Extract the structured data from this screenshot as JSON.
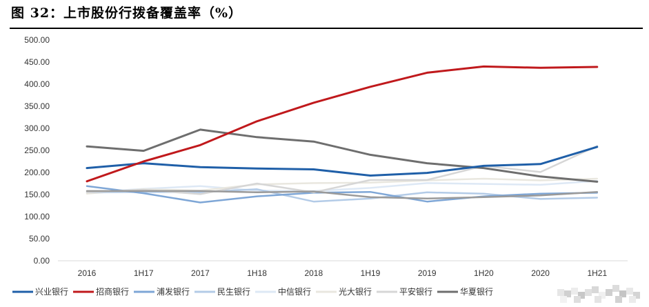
{
  "figure": {
    "title": "图 32：上市股份行拨备覆盖率（%）"
  },
  "chart_data": {
    "type": "line",
    "categories": [
      "2016",
      "1H17",
      "2017",
      "1H18",
      "2018",
      "1H19",
      "2019",
      "1H20",
      "2020",
      "1H21"
    ],
    "y_ticks": [
      "0.00",
      "50.00",
      "100.00",
      "150.00",
      "200.00",
      "250.00",
      "300.00",
      "350.00",
      "400.00",
      "450.00",
      "500.00"
    ],
    "ylim": [
      0,
      500
    ],
    "grid": false,
    "legend_position": "bottom",
    "series": [
      {
        "name": "兴业银行",
        "color": "#1f5fa8",
        "width": 3,
        "values": [
          210,
          221,
          212,
          209,
          207,
          193,
          199,
          215,
          219,
          258
        ]
      },
      {
        "name": "招商银行",
        "color": "#c0191c",
        "width": 3,
        "values": [
          180,
          225,
          262,
          316,
          358,
          394,
          426,
          440,
          437,
          439
        ]
      },
      {
        "name": "浦发银行",
        "color": "#7ea6d6",
        "width": 2.5,
        "values": [
          169,
          153,
          132,
          146,
          154,
          156,
          134,
          146,
          152,
          154
        ]
      },
      {
        "name": "民生银行",
        "color": "#b3cbe7",
        "width": 2.5,
        "values": [
          155,
          156,
          155,
          162,
          134,
          141,
          155,
          152,
          140,
          143
        ]
      },
      {
        "name": "中信银行",
        "color": "#dde8f5",
        "width": 2.5,
        "values": [
          155,
          163,
          169,
          159,
          158,
          165,
          176,
          174,
          172,
          181
        ]
      },
      {
        "name": "光大银行",
        "color": "#e9e7df",
        "width": 2.5,
        "values": [
          152,
          162,
          159,
          173,
          176,
          177,
          182,
          186,
          182,
          186
        ]
      },
      {
        "name": "平安银行",
        "color": "#d6d6d6",
        "width": 2.5,
        "values": [
          155,
          161,
          151,
          175,
          155,
          183,
          183,
          215,
          201,
          260
        ]
      },
      {
        "name": "华夏银行",
        "color": "#6e6e6e",
        "width": 3,
        "values": [
          259,
          249,
          297,
          280,
          270,
          240,
          221,
          210,
          191,
          179
        ]
      },
      {
        "name": "",
        "color": "#9a9a9a",
        "width": 2.5,
        "values": [
          158,
          158,
          158,
          155,
          157,
          144,
          141,
          144,
          148,
          156
        ]
      }
    ]
  }
}
